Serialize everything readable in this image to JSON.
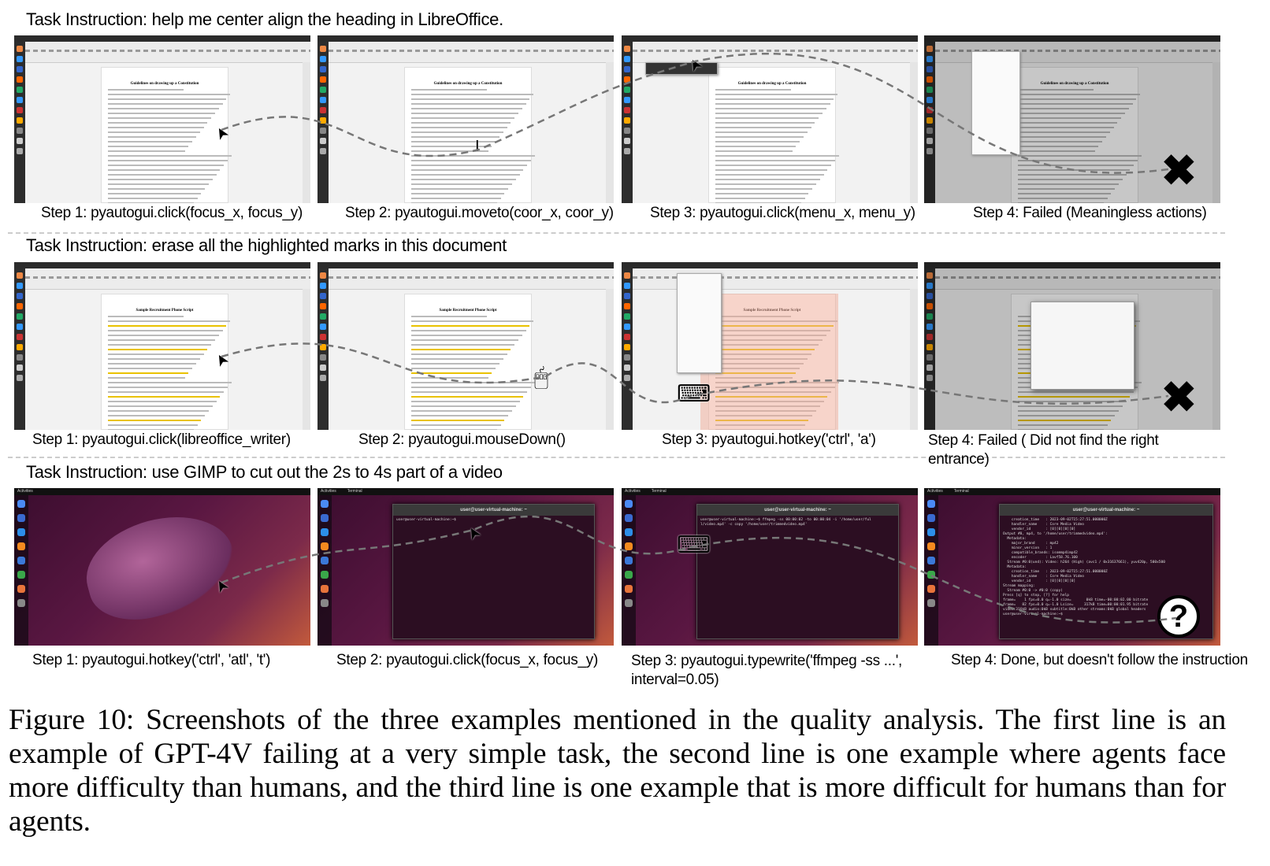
{
  "rows": [
    {
      "instruction": "Task Instruction: help me center align the heading in LibreOffice.",
      "theme": "libreoffice",
      "doc_heading": "Guidelines on drawing up a Constitution",
      "steps": [
        {
          "caption": "Step 1: pyautogui.click(focus_x, focus_y)",
          "marker": "cursor"
        },
        {
          "caption": "Step 2: pyautogui.moveto(coor_x, coor_y)",
          "marker": "text-cursor"
        },
        {
          "caption": "Step 3: pyautogui.click(menu_x, menu_y)",
          "marker": "cursor"
        },
        {
          "caption": "Step 4: Failed (Meaningless actions)",
          "marker": "fail-x"
        }
      ]
    },
    {
      "instruction": "Task Instruction: erase all the highlighted marks in this document",
      "theme": "libreoffice",
      "doc_heading": "Sample Recruitment Phone Script",
      "steps": [
        {
          "caption": "Step 1: pyautogui.click(libreoffice_writer)",
          "marker": "cursor"
        },
        {
          "caption": "Step 2: pyautogui.mouseDown()",
          "marker": "mouse"
        },
        {
          "caption": "Step 3: pyautogui.hotkey('ctrl', 'a')",
          "marker": "keyboard"
        },
        {
          "caption": "Step 4: Failed ( Did not find the right entrance)",
          "marker": "fail-x"
        }
      ]
    },
    {
      "instruction": "Task Instruction: use GIMP to cut out the 2s to 4s part of a video",
      "theme": "ubuntu",
      "terminal_title": "user@user-virtual-machine: ~",
      "topbar_left": "Activities",
      "topbar_app": "Terminal",
      "steps": [
        {
          "caption": "Step 1: pyautogui.hotkey('ctrl', 'atl', 't')",
          "marker": "cursor"
        },
        {
          "caption": "Step 2: pyautogui.click(focus_x, focus_y)",
          "marker": "cursor",
          "terminal": "user@user-virtual-machine:~$ "
        },
        {
          "caption": "Step 3: pyautogui.typewrite('ffmpeg -ss ...', interval=0.05)",
          "marker": "keyboard",
          "terminal": "user@user-virtual-machine:~$ ffmpeg -ss 00:00:02 -to 00:00:04 -i '/home/user/ful\nl/video.mp4' -c copy '/home/user/trimmedvideo.mp4'"
        },
        {
          "caption": "Step 4: Done, but doesn't follow the instruction",
          "marker": "question",
          "terminal": "    creation_time   : 2023-09-02T15:27:51.000000Z\n    handler_name    : Core Media Video\n    vendor_id       : [0][0][0][0]\nOutput #0, mp4, to '/home/user/trimmedvideo.mp4':\n  Metadata:\n    major_brand     : mp42\n    minor_version   : 1\n    compatible_brands: isommp4imp42\n    encoder         : Lavf58.76.100\n  Stream #0:0(und): Video: h264 (High) (avc1 / 0x31637661), yuv420p, 500x500\n  Metadata:\n    creation_time   : 2023-09-02T15:27:51.000000Z\n    handler_name    : Core Media Video\n    vendor_id       : [0][0][0][0]\nStream mapping:\n  Stream #0:0 -> #0:0 (copy)\nPress [q] to stop, [?] for help\nframe=    1 fps=0.0 q=-1.0 size=       0kB time=-00:00:02.00 bitrate\nframe=   82 fps=0.0 q=-1.0 Lsize=     317kB time=00:00:01.95 bitrate\nvideo:316kB audio:0kB subtitle:0kB other streams:0kB global headers\nuser@user-virtual-machine:~$"
        }
      ]
    }
  ],
  "figure_caption": "Figure 10: Screenshots of the three examples mentioned in the quality analysis. The first line is an example of GPT-4V failing at a very simple task, the second line is one example where agents face more difficulty than humans, and the third line is one example that is more difficult for humans than for agents."
}
